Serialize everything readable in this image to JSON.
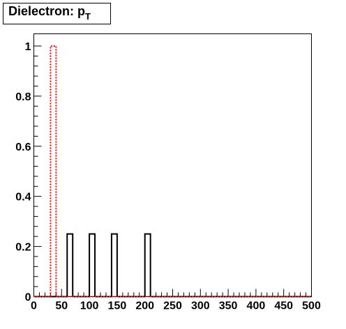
{
  "chart_data": {
    "type": "histogram",
    "title": "Dielectron: p",
    "title_subscript": "T",
    "bins": [
      0,
      10,
      20,
      30,
      40,
      50,
      60,
      70,
      80,
      90,
      100,
      110,
      120,
      130,
      140,
      150,
      160,
      170,
      180,
      190,
      200,
      210,
      220,
      230,
      240,
      250,
      260,
      270,
      280,
      290,
      300,
      310,
      320,
      330,
      340,
      350,
      360,
      370,
      380,
      390,
      400,
      410,
      420,
      430,
      440,
      450,
      460,
      470,
      480,
      490,
      500
    ],
    "series": [
      {
        "color": "#000000",
        "style": "solid",
        "values": [
          0,
          0,
          0,
          0,
          0,
          0,
          0.25,
          0,
          0,
          0,
          0.25,
          0,
          0,
          0,
          0.25,
          0,
          0,
          0,
          0,
          0,
          0.25,
          0,
          0,
          0,
          0,
          0,
          0,
          0,
          0,
          0,
          0,
          0,
          0,
          0,
          0,
          0,
          0,
          0,
          0,
          0,
          0,
          0,
          0,
          0,
          0,
          0,
          0,
          0,
          0,
          0
        ]
      },
      {
        "color": "#ff0000",
        "style": "dotted",
        "values": [
          0,
          0,
          0,
          1,
          0,
          0,
          0,
          0,
          0,
          0,
          0,
          0,
          0,
          0,
          0,
          0,
          0,
          0,
          0,
          0,
          0,
          0,
          0,
          0,
          0,
          0,
          0,
          0,
          0,
          0,
          0,
          0,
          0,
          0,
          0,
          0,
          0,
          0,
          0,
          0,
          0,
          0,
          0,
          0,
          0,
          0,
          0,
          0,
          0,
          0
        ]
      }
    ],
    "xlim": [
      0,
      500
    ],
    "xticks": [
      0,
      50,
      100,
      150,
      200,
      250,
      300,
      350,
      400,
      450,
      500
    ],
    "ylim": [
      0,
      1.0
    ],
    "yticks": [
      0,
      0.2,
      0.4,
      0.6,
      0.8,
      1
    ]
  }
}
